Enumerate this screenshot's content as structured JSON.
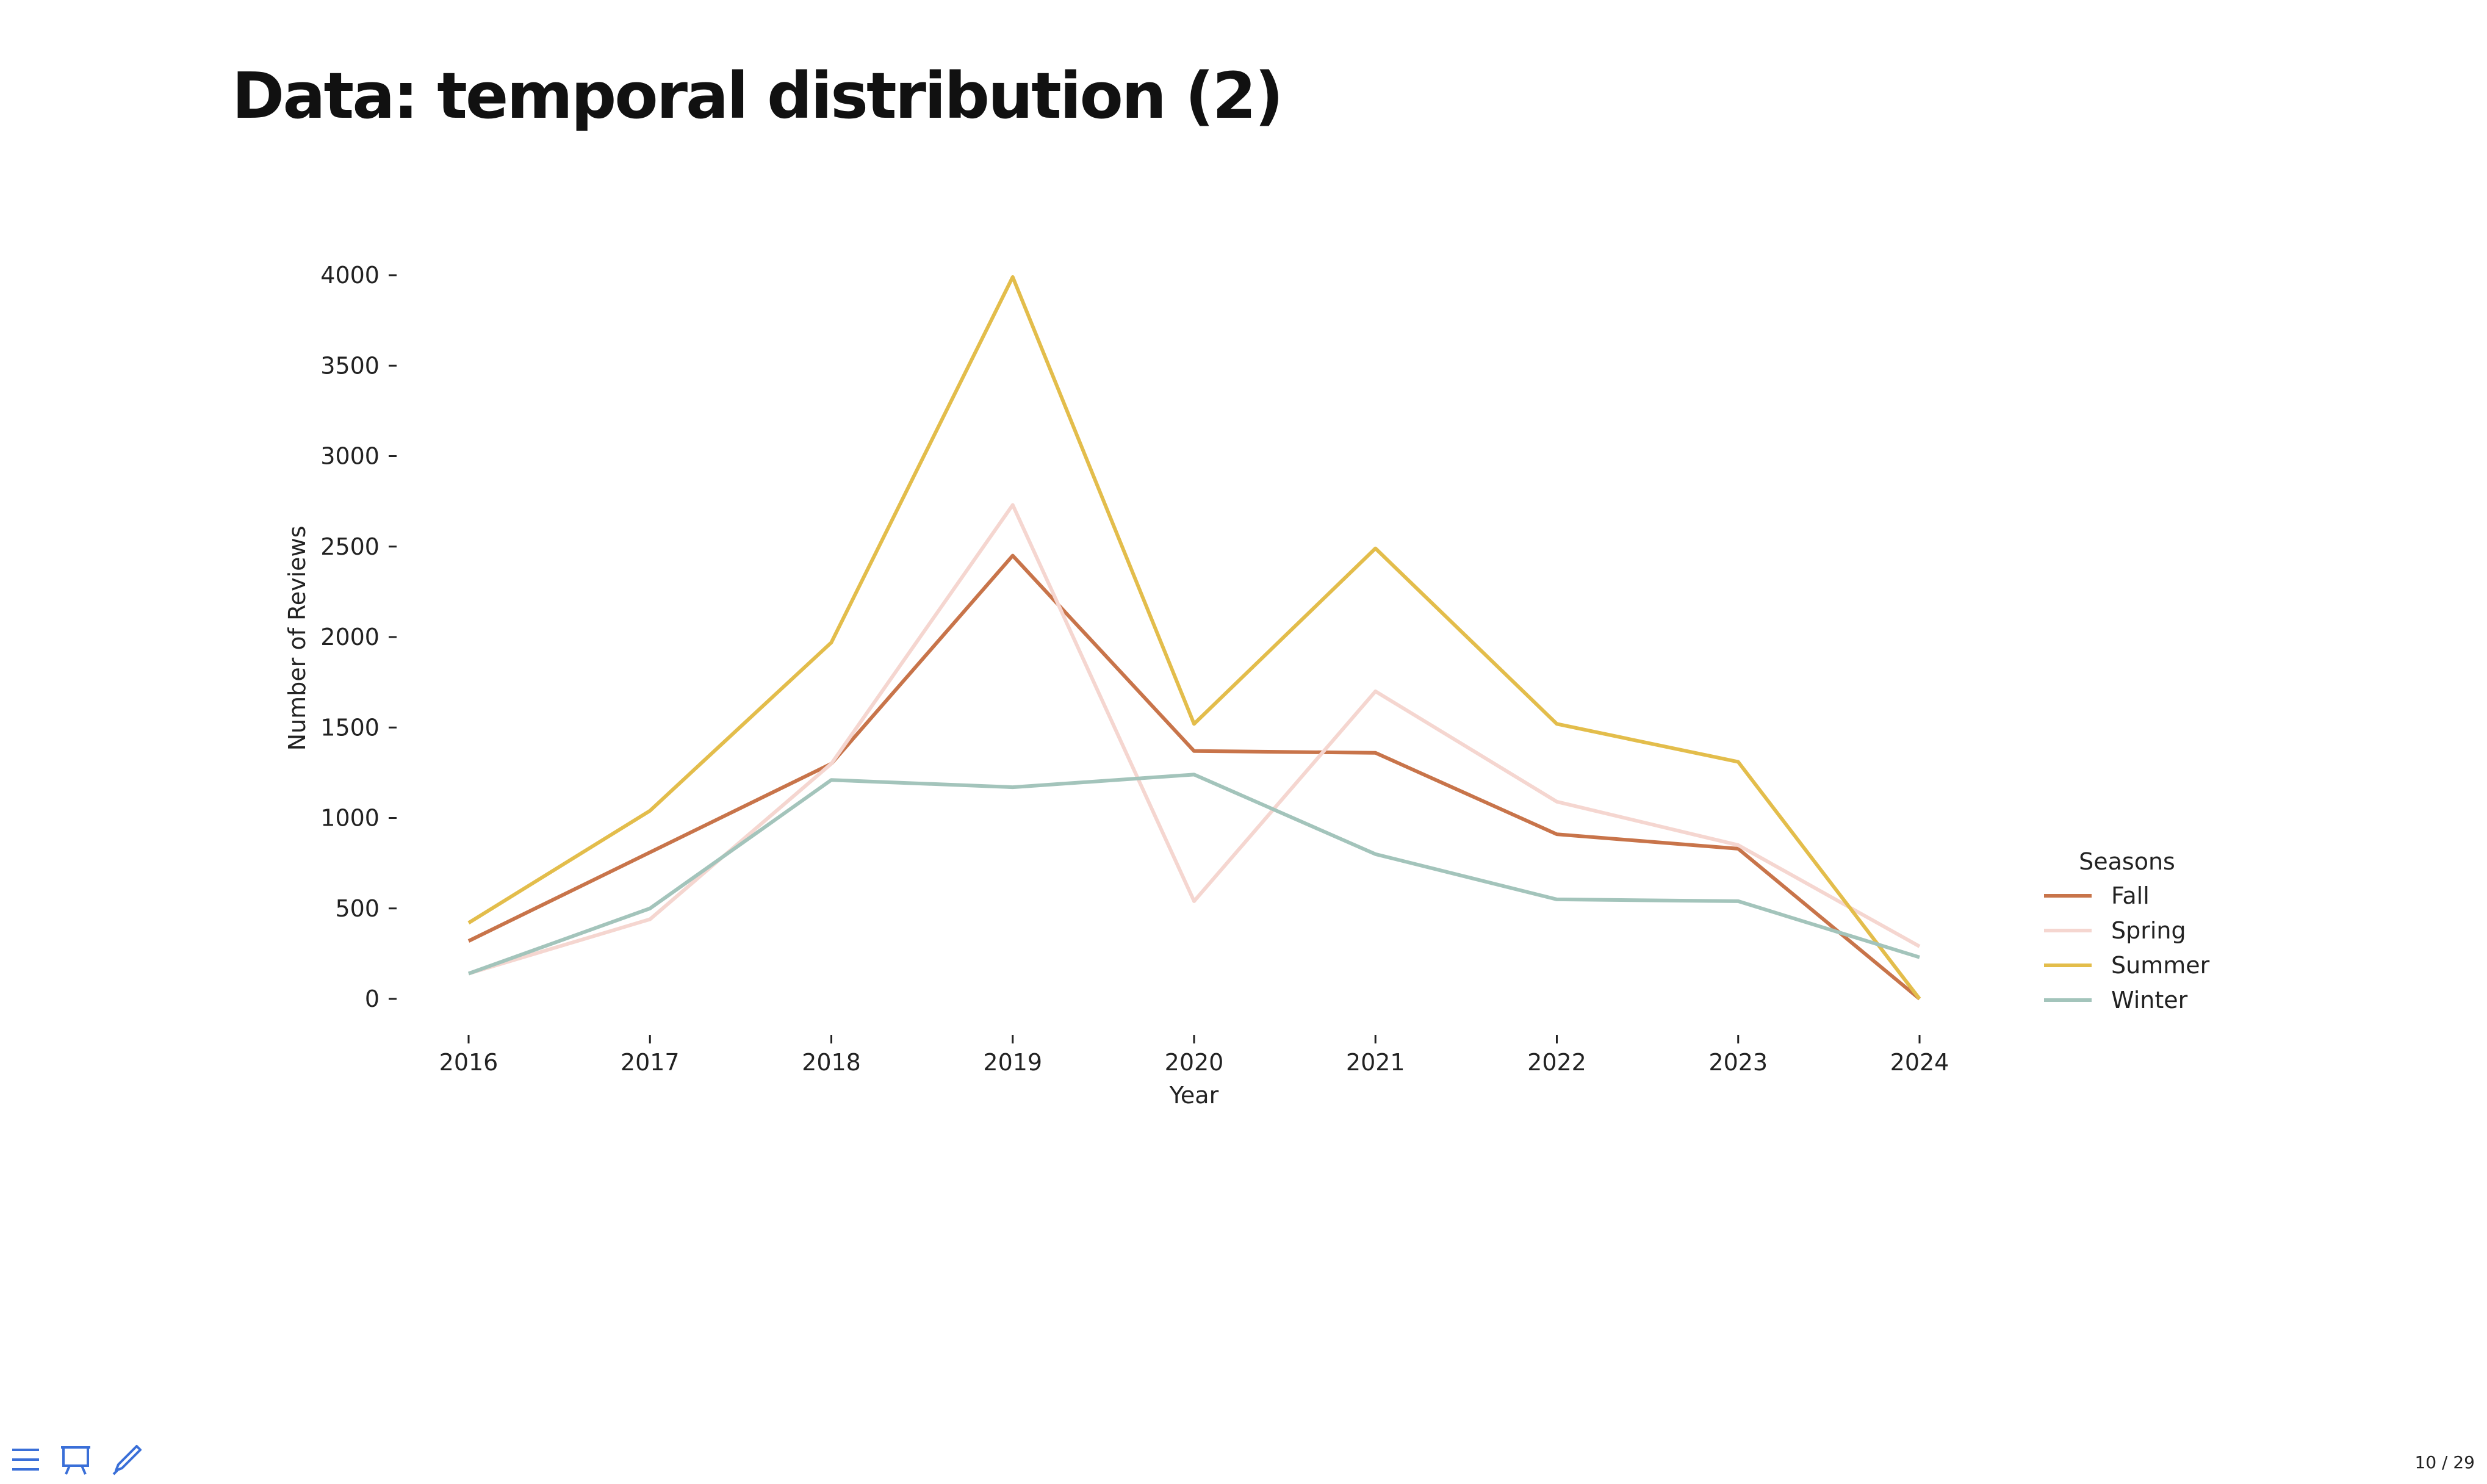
{
  "slide": {
    "title": "Data: temporal distribution (2)",
    "page_counter": "10 / 29"
  },
  "toolbar": {
    "icons": [
      "menu-icon",
      "presentation-icon",
      "pen-icon"
    ],
    "accent_color": "#3a6fd8"
  },
  "chart_data": {
    "type": "line",
    "title": "",
    "xlabel": "Year",
    "ylabel": "Number of Reviews",
    "x": [
      2016,
      2017,
      2018,
      2019,
      2020,
      2021,
      2022,
      2023,
      2024
    ],
    "ylim": [
      -100,
      4100
    ],
    "xticks": [
      "2016",
      "2017",
      "2018",
      "2019",
      "2020",
      "2021",
      "2022",
      "2023",
      "2024"
    ],
    "yticks": [
      "0",
      "500",
      "1000",
      "1500",
      "2000",
      "2500",
      "3000",
      "3500",
      "4000"
    ],
    "grid": false,
    "legend": {
      "title": "Seasons",
      "placement": "right"
    },
    "series": [
      {
        "name": "Fall",
        "color": "#c8744a",
        "values": [
          320,
          810,
          1300,
          2450,
          1370,
          1360,
          910,
          830,
          0
        ]
      },
      {
        "name": "Spring",
        "color": "#f5d6d0",
        "values": [
          140,
          440,
          1300,
          2730,
          540,
          1700,
          1090,
          850,
          290
        ]
      },
      {
        "name": "Summer",
        "color": "#e3bd4b",
        "values": [
          420,
          1040,
          1970,
          3990,
          1520,
          2490,
          1520,
          1310,
          0
        ]
      },
      {
        "name": "Winter",
        "color": "#a3c4bb",
        "values": [
          140,
          500,
          1210,
          1170,
          1240,
          800,
          550,
          540,
          230
        ]
      }
    ]
  }
}
